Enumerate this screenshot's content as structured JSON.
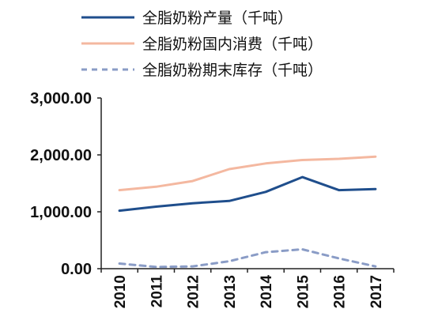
{
  "chart_data": {
    "type": "line",
    "title": "",
    "xlabel": "",
    "ylabel": "",
    "x": [
      "2010",
      "2011",
      "2012",
      "2013",
      "2014",
      "2015",
      "2016",
      "2017"
    ],
    "y_ticks": [
      "0.00",
      "1,000.00",
      "2,000.00",
      "3,000.00"
    ],
    "ylim": [
      0,
      3000
    ],
    "grid": false,
    "legend_position": "top",
    "series": [
      {
        "name": "全脂奶粉产量（千吨）",
        "color": "#1f4e8c",
        "style": "solid",
        "values": [
          1020,
          1090,
          1150,
          1190,
          1350,
          1610,
          1380,
          1400
        ]
      },
      {
        "name": "全脂奶粉国内消费（千吨）",
        "color": "#f4b8a0",
        "style": "solid",
        "values": [
          1380,
          1440,
          1540,
          1750,
          1850,
          1910,
          1930,
          1970
        ]
      },
      {
        "name": "全脂奶粉期末库存（千吨）",
        "color": "#8a9cc6",
        "style": "dashed",
        "values": [
          90,
          30,
          40,
          130,
          290,
          340,
          180,
          40
        ]
      }
    ]
  }
}
